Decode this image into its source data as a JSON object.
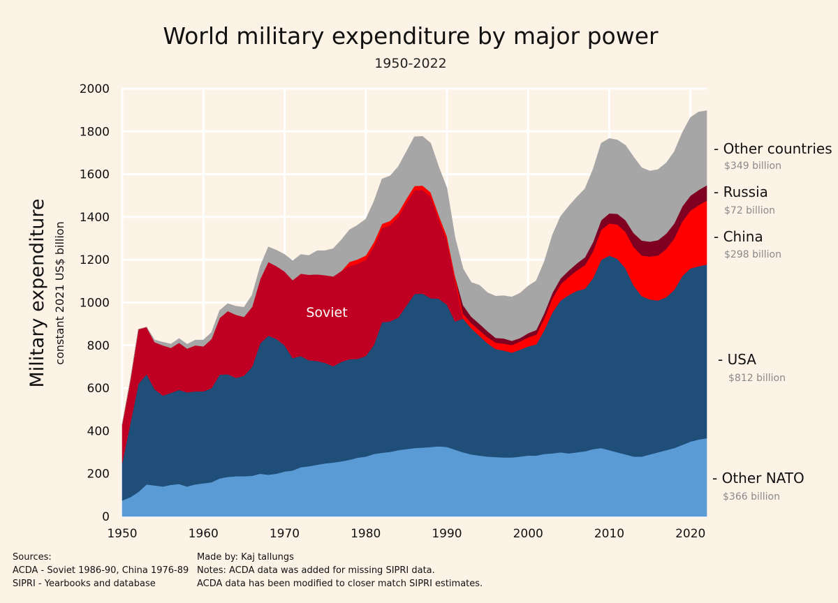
{
  "chart_data": {
    "type": "area",
    "stacked": true,
    "title": "World military expenditure by major power",
    "subtitle": "1950-2022",
    "ylabel": "Military expenditure",
    "ylabel_sub": "constant 2021 US$ billion",
    "xlabel": "",
    "xlim": [
      1950,
      2022
    ],
    "ylim": [
      0,
      2000
    ],
    "xticks": [
      1950,
      1960,
      1970,
      1980,
      1990,
      2000,
      2010,
      2020
    ],
    "yticks": [
      0,
      200,
      400,
      600,
      800,
      1000,
      1200,
      1400,
      1600,
      1800,
      2000
    ],
    "grid": true,
    "annotation": "Soviet",
    "x": [
      1950,
      1951,
      1952,
      1953,
      1954,
      1955,
      1956,
      1957,
      1958,
      1959,
      1960,
      1961,
      1962,
      1963,
      1964,
      1965,
      1966,
      1967,
      1968,
      1969,
      1970,
      1971,
      1972,
      1973,
      1974,
      1975,
      1976,
      1977,
      1978,
      1979,
      1980,
      1981,
      1982,
      1983,
      1984,
      1985,
      1986,
      1987,
      1988,
      1989,
      1990,
      1991,
      1992,
      1993,
      1994,
      1995,
      1996,
      1997,
      1998,
      1999,
      2000,
      2001,
      2002,
      2003,
      2004,
      2005,
      2006,
      2007,
      2008,
      2009,
      2010,
      2011,
      2012,
      2013,
      2014,
      2015,
      2016,
      2017,
      2018,
      2019,
      2020,
      2021,
      2022
    ],
    "series": [
      {
        "name": "Other NATO",
        "color": "#5b9bd5",
        "latest": "$366 billion",
        "values": [
          75,
          90,
          115,
          150,
          145,
          140,
          148,
          152,
          140,
          150,
          155,
          160,
          178,
          185,
          188,
          188,
          190,
          200,
          195,
          200,
          210,
          215,
          230,
          235,
          242,
          248,
          252,
          258,
          265,
          275,
          280,
          292,
          298,
          302,
          310,
          315,
          320,
          322,
          325,
          328,
          325,
          312,
          300,
          290,
          285,
          280,
          278,
          276,
          276,
          280,
          285,
          285,
          292,
          295,
          300,
          295,
          300,
          305,
          315,
          320,
          310,
          300,
          290,
          280,
          280,
          290,
          300,
          310,
          320,
          335,
          350,
          360,
          366
        ]
      },
      {
        "name": "USA",
        "color": "#1f4e79",
        "latest": "$812 billion",
        "values": [
          175,
          345,
          505,
          515,
          450,
          425,
          430,
          440,
          440,
          435,
          430,
          440,
          485,
          480,
          460,
          470,
          510,
          610,
          650,
          630,
          590,
          525,
          520,
          495,
          485,
          470,
          450,
          465,
          470,
          462,
          470,
          510,
          610,
          610,
          620,
          670,
          720,
          720,
          695,
          690,
          665,
          600,
          625,
          590,
          560,
          530,
          505,
          500,
          490,
          500,
          510,
          520,
          580,
          660,
          710,
          740,
          755,
          760,
          800,
          880,
          910,
          905,
          870,
          800,
          750,
          725,
          710,
          715,
          740,
          790,
          810,
          810,
          812
        ]
      },
      {
        "name": "Soviet",
        "color": "#c00022",
        "values": [
          180,
          200,
          255,
          220,
          220,
          235,
          210,
          220,
          205,
          215,
          210,
          230,
          265,
          295,
          295,
          275,
          280,
          300,
          345,
          340,
          345,
          365,
          385,
          400,
          405,
          410,
          420,
          425,
          435,
          445,
          450,
          460,
          440,
          450,
          470,
          480,
          485,
          485,
          475,
          370,
          300,
          190,
          0,
          0,
          0,
          0,
          0,
          0,
          0,
          0,
          0,
          0,
          0,
          0,
          0,
          0,
          0,
          0,
          0,
          0,
          0,
          0,
          0,
          0,
          0,
          0,
          0,
          0,
          0,
          0,
          0,
          0,
          0
        ]
      },
      {
        "name": "China",
        "color": "#ff0000",
        "latest": "$298 billion",
        "values": [
          0,
          0,
          0,
          0,
          0,
          0,
          0,
          0,
          0,
          0,
          0,
          0,
          0,
          0,
          0,
          0,
          0,
          0,
          0,
          0,
          0,
          0,
          0,
          0,
          0,
          0,
          0,
          0,
          20,
          20,
          20,
          20,
          20,
          20,
          20,
          20,
          20,
          20,
          20,
          20,
          20,
          22,
          22,
          24,
          26,
          28,
          30,
          32,
          35,
          38,
          42,
          45,
          55,
          65,
          75,
          85,
          95,
          110,
          125,
          140,
          150,
          160,
          170,
          180,
          190,
          200,
          210,
          225,
          240,
          255,
          270,
          285,
          298
        ]
      },
      {
        "name": "Russia",
        "color": "#7f0021",
        "latest": "$72 billion",
        "values": [
          0,
          0,
          0,
          0,
          0,
          0,
          0,
          0,
          0,
          0,
          0,
          0,
          0,
          0,
          0,
          0,
          0,
          0,
          0,
          0,
          0,
          0,
          0,
          0,
          0,
          0,
          0,
          0,
          0,
          0,
          0,
          0,
          0,
          0,
          0,
          0,
          0,
          0,
          0,
          0,
          0,
          0,
          40,
          30,
          30,
          28,
          22,
          24,
          20,
          16,
          20,
          22,
          25,
          26,
          28,
          30,
          33,
          37,
          43,
          45,
          47,
          50,
          55,
          65,
          70,
          70,
          72,
          72,
          70,
          70,
          70,
          71,
          72
        ]
      },
      {
        "name": "Other countries",
        "color": "#a6a6a6",
        "latest": "$349 billion",
        "values": [
          0,
          0,
          0,
          0,
          10,
          15,
          18,
          20,
          20,
          25,
          30,
          30,
          35,
          35,
          40,
          45,
          55,
          60,
          70,
          75,
          80,
          90,
          90,
          90,
          110,
          115,
          130,
          145,
          150,
          160,
          170,
          190,
          210,
          210,
          215,
          220,
          230,
          230,
          230,
          225,
          225,
          180,
          170,
          160,
          180,
          180,
          195,
          200,
          205,
          210,
          220,
          230,
          240,
          270,
          290,
          300,
          310,
          320,
          340,
          360,
          350,
          345,
          350,
          355,
          340,
          330,
          330,
          330,
          335,
          345,
          365,
          365,
          349
        ]
      }
    ]
  },
  "footer": {
    "sources_title": "Sources:",
    "source_1": "ACDA - Soviet 1986-90, China 1976-89",
    "source_2": "SIPRI - Yearbooks and database",
    "made_by": "Made by: Kaj tallungs",
    "note_1": "Notes: ACDA data was added for missing SIPRI data.",
    "note_2": "ACDA data has been modified to closer match SIPRI estimates."
  }
}
